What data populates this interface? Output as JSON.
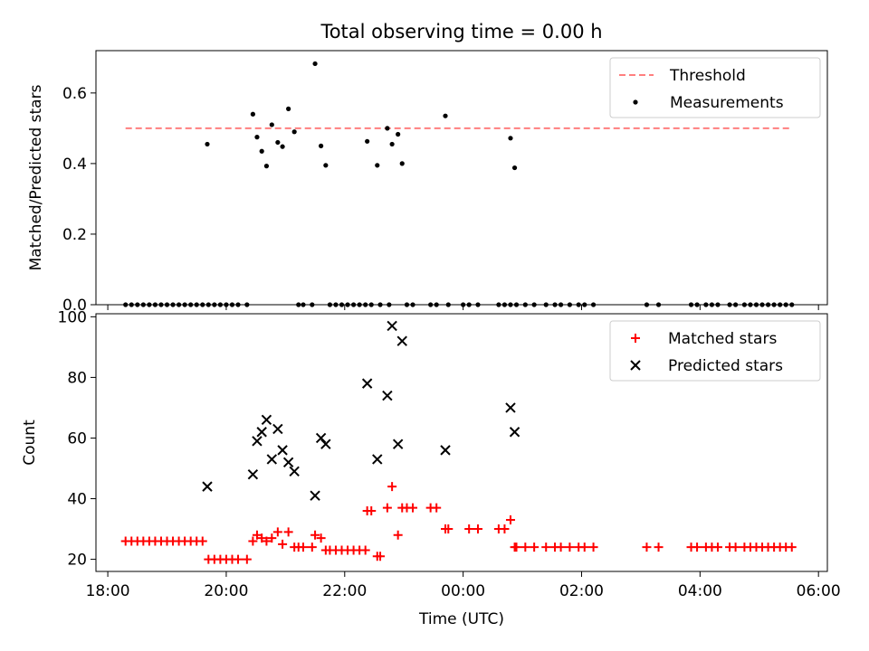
{
  "figure": {
    "title": "Total observing time = 0.00 h"
  },
  "chart_data": [
    {
      "type": "scatter",
      "ylabel": "Matched/Predicted stars",
      "xlim": [
        17.8,
        30.15
      ],
      "ylim": [
        0,
        0.72
      ],
      "y_ticks": [
        0.0,
        0.2,
        0.4,
        0.6
      ],
      "y_tick_labels": [
        "0.0",
        "0.2",
        "0.4",
        "0.6"
      ],
      "x_tick_labels_shown": false,
      "legend_position": "top-right",
      "series": [
        {
          "name": "Threshold",
          "kind": "dashed-line",
          "color": "#ff7f7f",
          "x": [
            18.3,
            29.55
          ],
          "y": [
            0.5,
            0.5
          ]
        },
        {
          "name": "Measurements",
          "kind": "dot",
          "color": "#000000",
          "points": [
            [
              18.3,
              0
            ],
            [
              18.4,
              0
            ],
            [
              18.5,
              0
            ],
            [
              18.6,
              0
            ],
            [
              18.7,
              0
            ],
            [
              18.8,
              0
            ],
            [
              18.9,
              0
            ],
            [
              19.0,
              0
            ],
            [
              19.1,
              0
            ],
            [
              19.2,
              0
            ],
            [
              19.3,
              0
            ],
            [
              19.4,
              0
            ],
            [
              19.5,
              0
            ],
            [
              19.6,
              0
            ],
            [
              19.7,
              0
            ],
            [
              19.8,
              0
            ],
            [
              19.9,
              0
            ],
            [
              20.0,
              0
            ],
            [
              20.1,
              0
            ],
            [
              20.2,
              0
            ],
            [
              20.35,
              0
            ],
            [
              19.68,
              0.455
            ],
            [
              20.45,
              0.54
            ],
            [
              20.52,
              0.475
            ],
            [
              20.6,
              0.435
            ],
            [
              20.68,
              0.393
            ],
            [
              20.77,
              0.51
            ],
            [
              20.87,
              0.46
            ],
            [
              20.95,
              0.448
            ],
            [
              21.05,
              0.555
            ],
            [
              21.15,
              0.49
            ],
            [
              21.5,
              0.683
            ],
            [
              21.6,
              0.45
            ],
            [
              21.68,
              0.395
            ],
            [
              21.22,
              0
            ],
            [
              21.3,
              0
            ],
            [
              21.45,
              0
            ],
            [
              21.75,
              0
            ],
            [
              21.85,
              0
            ],
            [
              21.95,
              0
            ],
            [
              22.05,
              0
            ],
            [
              22.15,
              0
            ],
            [
              22.25,
              0
            ],
            [
              22.35,
              0
            ],
            [
              22.45,
              0
            ],
            [
              22.6,
              0
            ],
            [
              22.38,
              0.463
            ],
            [
              22.55,
              0.395
            ],
            [
              22.72,
              0.5
            ],
            [
              22.8,
              0.455
            ],
            [
              22.9,
              0.483
            ],
            [
              22.97,
              0.4
            ],
            [
              22.75,
              0
            ],
            [
              23.05,
              0
            ],
            [
              23.15,
              0
            ],
            [
              23.45,
              0
            ],
            [
              23.55,
              0
            ],
            [
              23.75,
              0
            ],
            [
              23.7,
              0.535
            ],
            [
              24.0,
              0
            ],
            [
              24.1,
              0
            ],
            [
              24.25,
              0
            ],
            [
              24.6,
              0
            ],
            [
              24.7,
              0
            ],
            [
              24.8,
              0
            ],
            [
              24.9,
              0
            ],
            [
              25.05,
              0
            ],
            [
              25.2,
              0
            ],
            [
              25.4,
              0
            ],
            [
              25.55,
              0
            ],
            [
              25.65,
              0
            ],
            [
              25.8,
              0
            ],
            [
              25.95,
              0
            ],
            [
              26.05,
              0
            ],
            [
              26.2,
              0
            ],
            [
              24.8,
              0.472
            ],
            [
              24.87,
              0.388
            ],
            [
              27.1,
              0
            ],
            [
              27.3,
              0
            ],
            [
              27.85,
              0
            ],
            [
              27.95,
              0
            ],
            [
              28.1,
              0
            ],
            [
              28.2,
              0
            ],
            [
              28.3,
              0
            ],
            [
              28.5,
              0
            ],
            [
              28.6,
              0
            ],
            [
              28.75,
              0
            ],
            [
              28.85,
              0
            ],
            [
              28.95,
              0
            ],
            [
              29.05,
              0
            ],
            [
              29.15,
              0
            ],
            [
              29.25,
              0
            ],
            [
              29.35,
              0
            ],
            [
              29.45,
              0
            ],
            [
              29.55,
              0
            ]
          ]
        }
      ]
    },
    {
      "type": "scatter",
      "xlabel": "Time (UTC)",
      "ylabel": "Count",
      "xlim": [
        17.8,
        30.15
      ],
      "ylim": [
        16,
        101
      ],
      "x_ticks": [
        18,
        20,
        22,
        24,
        26,
        28,
        30
      ],
      "x_tick_labels": [
        "18:00",
        "20:00",
        "22:00",
        "00:00",
        "02:00",
        "04:00",
        "06:00"
      ],
      "y_ticks": [
        20,
        40,
        60,
        80,
        100
      ],
      "y_tick_labels": [
        "20",
        "40",
        "60",
        "80",
        "100"
      ],
      "legend_position": "top-right",
      "series": [
        {
          "name": "Matched stars",
          "kind": "plus",
          "color": "#ff0000",
          "points": [
            [
              18.3,
              26
            ],
            [
              18.4,
              26
            ],
            [
              18.5,
              26
            ],
            [
              18.6,
              26
            ],
            [
              18.7,
              26
            ],
            [
              18.8,
              26
            ],
            [
              18.9,
              26
            ],
            [
              19.0,
              26
            ],
            [
              19.1,
              26
            ],
            [
              19.2,
              26
            ],
            [
              19.3,
              26
            ],
            [
              19.4,
              26
            ],
            [
              19.5,
              26
            ],
            [
              19.6,
              26
            ],
            [
              19.7,
              20
            ],
            [
              19.8,
              20
            ],
            [
              19.9,
              20
            ],
            [
              20.0,
              20
            ],
            [
              20.1,
              20
            ],
            [
              20.2,
              20
            ],
            [
              20.35,
              20
            ],
            [
              20.45,
              26
            ],
            [
              20.52,
              28
            ],
            [
              20.6,
              27
            ],
            [
              20.68,
              26
            ],
            [
              20.77,
              27
            ],
            [
              20.87,
              29
            ],
            [
              20.95,
              25
            ],
            [
              21.05,
              29
            ],
            [
              21.15,
              24
            ],
            [
              21.22,
              24
            ],
            [
              21.3,
              24
            ],
            [
              21.45,
              24
            ],
            [
              21.5,
              28
            ],
            [
              21.6,
              27
            ],
            [
              21.68,
              23
            ],
            [
              21.75,
              23
            ],
            [
              21.85,
              23
            ],
            [
              21.95,
              23
            ],
            [
              22.05,
              23
            ],
            [
              22.15,
              23
            ],
            [
              22.25,
              23
            ],
            [
              22.35,
              23
            ],
            [
              22.38,
              36
            ],
            [
              22.45,
              36
            ],
            [
              22.55,
              21
            ],
            [
              22.6,
              21
            ],
            [
              22.72,
              37
            ],
            [
              22.8,
              44
            ],
            [
              22.9,
              28
            ],
            [
              22.97,
              37
            ],
            [
              23.05,
              37
            ],
            [
              23.15,
              37
            ],
            [
              23.45,
              37
            ],
            [
              23.55,
              37
            ],
            [
              23.7,
              30
            ],
            [
              23.75,
              30
            ],
            [
              24.1,
              30
            ],
            [
              24.25,
              30
            ],
            [
              24.6,
              30
            ],
            [
              24.7,
              30
            ],
            [
              24.8,
              33
            ],
            [
              24.87,
              24
            ],
            [
              24.9,
              24
            ],
            [
              25.05,
              24
            ],
            [
              25.2,
              24
            ],
            [
              25.4,
              24
            ],
            [
              25.55,
              24
            ],
            [
              25.65,
              24
            ],
            [
              25.8,
              24
            ],
            [
              25.95,
              24
            ],
            [
              26.05,
              24
            ],
            [
              26.2,
              24
            ],
            [
              27.1,
              24
            ],
            [
              27.3,
              24
            ],
            [
              27.85,
              24
            ],
            [
              27.95,
              24
            ],
            [
              28.1,
              24
            ],
            [
              28.2,
              24
            ],
            [
              28.3,
              24
            ],
            [
              28.5,
              24
            ],
            [
              28.6,
              24
            ],
            [
              28.75,
              24
            ],
            [
              28.85,
              24
            ],
            [
              28.95,
              24
            ],
            [
              29.05,
              24
            ],
            [
              29.15,
              24
            ],
            [
              29.25,
              24
            ],
            [
              29.35,
              24
            ],
            [
              29.45,
              24
            ],
            [
              29.55,
              24
            ]
          ]
        },
        {
          "name": "Predicted stars",
          "kind": "cross",
          "color": "#000000",
          "points": [
            [
              19.68,
              44
            ],
            [
              20.45,
              48
            ],
            [
              20.52,
              59
            ],
            [
              20.6,
              62
            ],
            [
              20.68,
              66
            ],
            [
              20.77,
              53
            ],
            [
              20.87,
              63
            ],
            [
              20.95,
              56
            ],
            [
              21.05,
              52
            ],
            [
              21.15,
              49
            ],
            [
              21.5,
              41
            ],
            [
              21.6,
              60
            ],
            [
              21.68,
              58
            ],
            [
              22.38,
              78
            ],
            [
              22.55,
              53
            ],
            [
              22.72,
              74
            ],
            [
              22.8,
              97
            ],
            [
              22.9,
              58
            ],
            [
              22.97,
              92
            ],
            [
              23.7,
              56
            ],
            [
              24.8,
              70
            ],
            [
              24.87,
              62
            ]
          ]
        }
      ]
    }
  ]
}
